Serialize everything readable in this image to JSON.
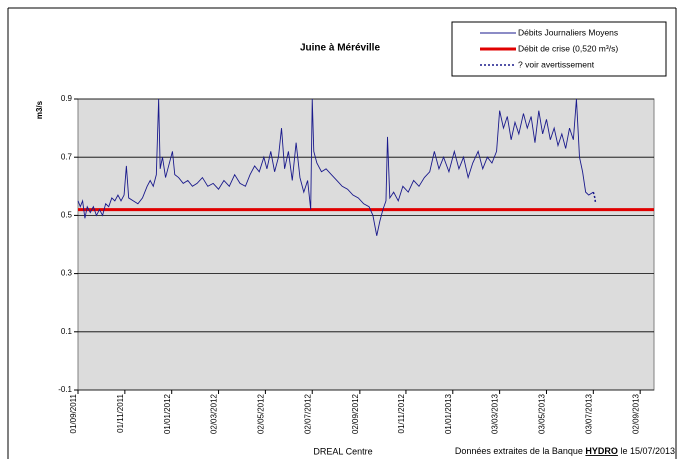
{
  "chart_data": {
    "type": "line",
    "title": "Juine à Méréville",
    "y_label": "m3/s",
    "ylim": [
      -0.1,
      0.9
    ],
    "yticks": [
      0.9,
      0.7,
      0.5,
      0.3,
      0.1,
      -0.1
    ],
    "grid": true,
    "xlim": [
      "01/09/2011",
      "20/09/2013"
    ],
    "xticks": [
      "01/09/2011",
      "01/11/2011",
      "01/01/2012",
      "02/03/2012",
      "02/05/2012",
      "02/07/2012",
      "02/09/2012",
      "01/11/2012",
      "01/01/2013",
      "03/03/2013",
      "03/05/2013",
      "03/07/2013",
      "02/09/2013"
    ],
    "legend": "top-right",
    "series": [
      {
        "name": "Débits Journaliers Moyens",
        "color": "#1a1a8c",
        "dash": "solid",
        "x": [
          "01/09/2011",
          "04/09/2011",
          "07/09/2011",
          "10/09/2011",
          "13/09/2011",
          "17/09/2011",
          "21/09/2011",
          "25/09/2011",
          "29/09/2011",
          "03/10/2011",
          "07/10/2011",
          "11/10/2011",
          "15/10/2011",
          "19/10/2011",
          "23/10/2011",
          "27/10/2011",
          "31/10/2011",
          "03/11/2011",
          "06/11/2011",
          "12/11/2011",
          "18/11/2011",
          "24/11/2011",
          "30/11/2011",
          "04/12/2011",
          "08/12/2011",
          "12/12/2011",
          "15/12/2011",
          "17/12/2011",
          "20/12/2011",
          "24/12/2011",
          "28/12/2011",
          "02/01/2012",
          "05/01/2012",
          "10/01/2012",
          "16/01/2012",
          "22/01/2012",
          "28/01/2012",
          "03/02/2012",
          "10/02/2012",
          "17/02/2012",
          "24/02/2012",
          "02/03/2012",
          "09/03/2012",
          "16/03/2012",
          "23/03/2012",
          "30/03/2012",
          "06/04/2012",
          "12/04/2012",
          "18/04/2012",
          "24/04/2012",
          "30/04/2012",
          "04/05/2012",
          "09/05/2012",
          "14/05/2012",
          "19/05/2012",
          "23/05/2012",
          "27/05/2012",
          "01/06/2012",
          "06/06/2012",
          "11/06/2012",
          "16/06/2012",
          "21/06/2012",
          "26/06/2012",
          "30/06/2012",
          "02/07/2012",
          "04/07/2012",
          "08/07/2012",
          "14/07/2012",
          "20/07/2012",
          "27/07/2012",
          "03/08/2012",
          "10/08/2012",
          "17/08/2012",
          "24/08/2012",
          "31/08/2012",
          "07/09/2012",
          "14/09/2012",
          "19/09/2012",
          "24/09/2012",
          "28/09/2012",
          "02/10/2012",
          "06/10/2012",
          "08/10/2012",
          "11/10/2012",
          "16/10/2012",
          "22/10/2012",
          "28/10/2012",
          "04/11/2012",
          "11/11/2012",
          "18/11/2012",
          "25/11/2012",
          "02/12/2012",
          "08/12/2012",
          "14/12/2012",
          "20/12/2012",
          "27/12/2012",
          "03/01/2013",
          "09/01/2013",
          "15/01/2013",
          "21/01/2013",
          "27/01/2013",
          "03/02/2013",
          "09/02/2013",
          "15/02/2013",
          "21/02/2013",
          "27/02/2013",
          "03/03/2013",
          "08/03/2013",
          "13/03/2013",
          "18/03/2013",
          "23/03/2013",
          "28/03/2013",
          "03/04/2013",
          "08/04/2013",
          "13/04/2013",
          "18/04/2013",
          "23/04/2013",
          "28/04/2013",
          "03/05/2013",
          "08/05/2013",
          "13/05/2013",
          "18/05/2013",
          "23/05/2013",
          "28/05/2013",
          "02/06/2013",
          "07/06/2013",
          "11/06/2013",
          "15/06/2013",
          "19/06/2013",
          "23/06/2013",
          "27/06/2013",
          "03/07/2013"
        ],
        "values": [
          0.55,
          0.53,
          0.55,
          0.49,
          0.53,
          0.51,
          0.53,
          0.5,
          0.52,
          0.5,
          0.54,
          0.53,
          0.56,
          0.55,
          0.57,
          0.55,
          0.57,
          0.67,
          0.56,
          0.55,
          0.54,
          0.56,
          0.6,
          0.62,
          0.6,
          0.64,
          0.9,
          0.66,
          0.7,
          0.63,
          0.67,
          0.72,
          0.64,
          0.63,
          0.61,
          0.62,
          0.6,
          0.61,
          0.63,
          0.6,
          0.61,
          0.59,
          0.62,
          0.6,
          0.64,
          0.61,
          0.6,
          0.64,
          0.67,
          0.65,
          0.7,
          0.66,
          0.72,
          0.65,
          0.7,
          0.8,
          0.66,
          0.72,
          0.62,
          0.75,
          0.63,
          0.58,
          0.62,
          0.52,
          0.9,
          0.72,
          0.68,
          0.65,
          0.66,
          0.64,
          0.62,
          0.6,
          0.59,
          0.57,
          0.56,
          0.54,
          0.53,
          0.5,
          0.43,
          0.48,
          0.52,
          0.55,
          0.77,
          0.56,
          0.58,
          0.55,
          0.6,
          0.58,
          0.62,
          0.6,
          0.63,
          0.65,
          0.72,
          0.66,
          0.7,
          0.65,
          0.72,
          0.66,
          0.7,
          0.63,
          0.68,
          0.72,
          0.66,
          0.7,
          0.68,
          0.72,
          0.86,
          0.8,
          0.84,
          0.76,
          0.82,
          0.78,
          0.85,
          0.8,
          0.84,
          0.75,
          0.86,
          0.78,
          0.83,
          0.76,
          0.8,
          0.74,
          0.78,
          0.73,
          0.8,
          0.76,
          0.9,
          0.7,
          0.65,
          0.58,
          0.57,
          0.58
        ]
      },
      {
        "name": "? voir avertissement",
        "color": "#1a1a8c",
        "dash": "dotted",
        "x": [
          "03/07/2013",
          "05/07/2013",
          "06/07/2013"
        ],
        "values": [
          0.58,
          0.56,
          0.54
        ]
      }
    ],
    "threshold": {
      "name": "Débit de crise (0,520 m³/s)",
      "value": 0.52,
      "color": "#e00000"
    }
  },
  "footer": {
    "left": "DREAL Centre",
    "right_prefix": "Données extraites de la Banque ",
    "right_bold": "HYDRO",
    "right_suffix": " le 15/07/2013"
  }
}
